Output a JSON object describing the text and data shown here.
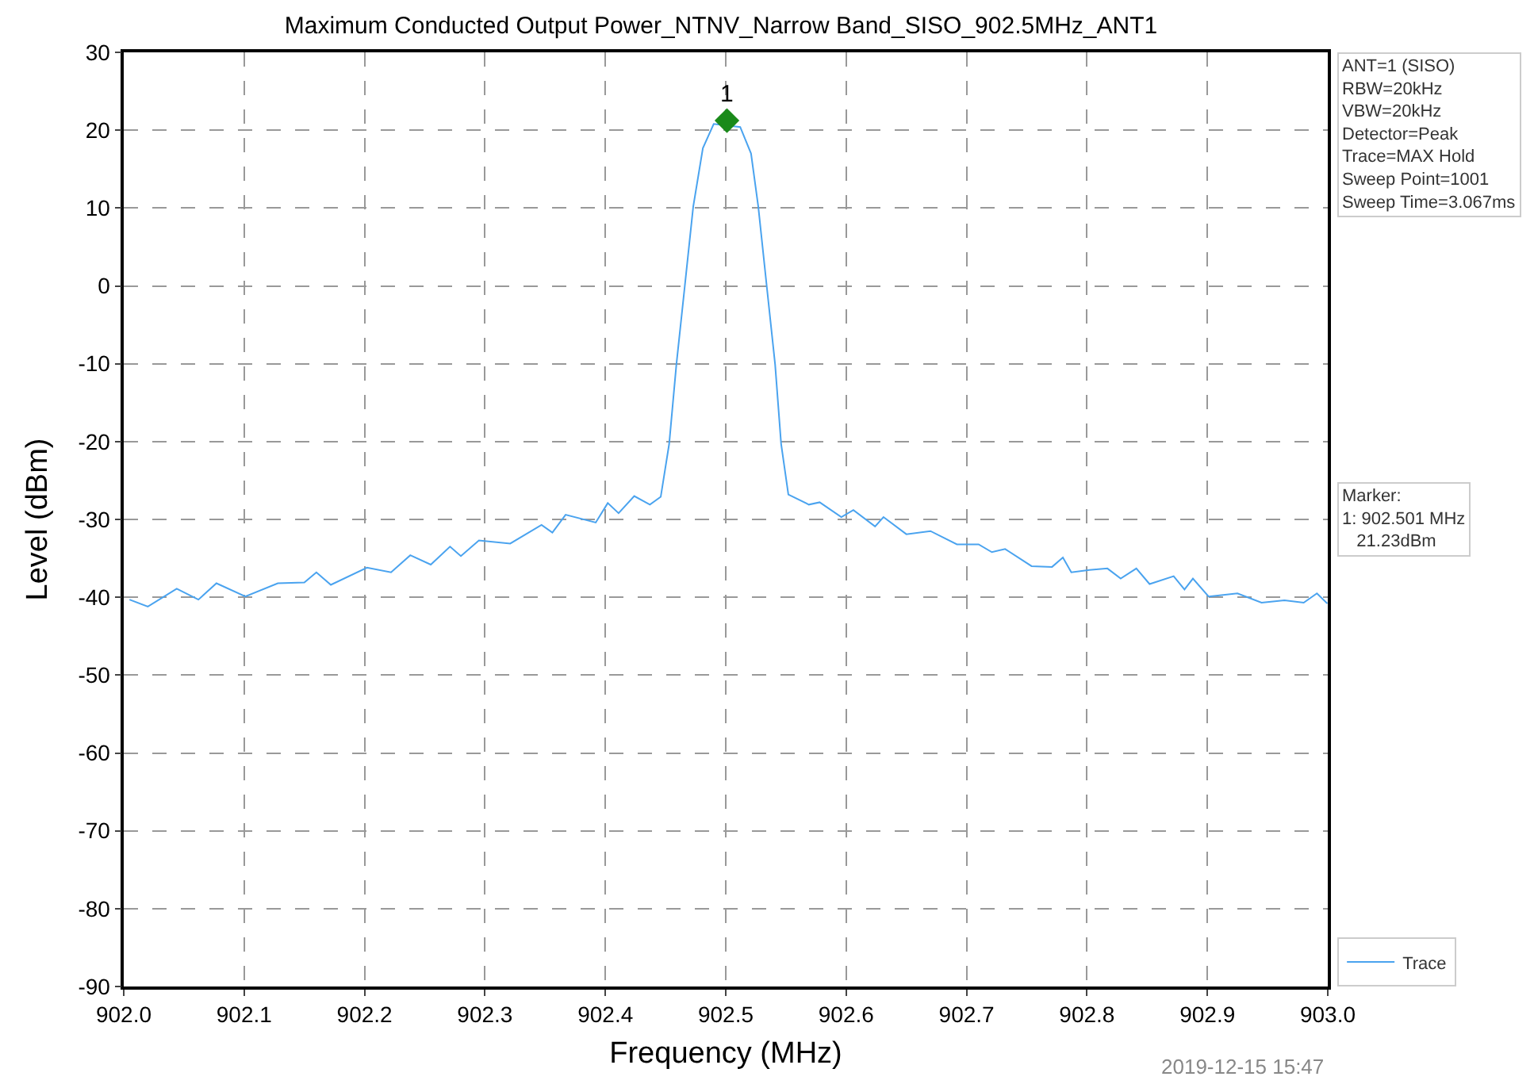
{
  "chart_data": {
    "type": "line",
    "title": "Maximum Conducted Output Power_NTNV_Narrow Band_SISO_902.5MHz_ANT1",
    "xlabel": "Frequency (MHz)",
    "ylabel": "Level (dBm)",
    "xlim": [
      902.0,
      903.0
    ],
    "xticks": [
      {
        "value": 902.0,
        "label": "902.0"
      },
      902.1,
      902.2,
      902.3,
      902.4,
      902.5,
      902.6,
      902.7,
      902.8,
      902.9,
      {
        "value": 903.0,
        "label": "903.0"
      }
    ],
    "ylim": [
      -90,
      30
    ],
    "yticks": [
      -90,
      -80,
      -70,
      -60,
      -50,
      -40,
      -30,
      -20,
      -10,
      0,
      10,
      20,
      30
    ],
    "grid": true,
    "legend": "bottom right",
    "line_style": "solid",
    "series": [
      {
        "name": "Trace",
        "marker": "none",
        "color": "#4aa3ef",
        "x": [
          902.0048,
          902.02,
          902.044,
          902.062,
          902.077,
          902.101,
          902.128,
          902.15,
          902.16,
          902.172,
          902.202,
          902.222,
          902.238,
          902.255,
          902.271,
          902.28,
          902.295,
          902.321,
          902.347,
          902.356,
          902.367,
          902.392,
          902.402,
          902.411,
          902.424,
          902.437,
          902.446,
          902.453,
          902.459,
          902.466,
          902.473,
          902.481,
          902.49,
          902.512,
          902.521,
          902.527,
          902.534,
          902.541,
          902.546,
          902.552,
          902.569,
          902.578,
          902.596,
          902.606,
          902.624,
          902.631,
          902.65,
          902.67,
          902.692,
          902.71,
          902.721,
          902.732,
          902.754,
          902.771,
          902.78,
          902.787,
          902.802,
          902.817,
          902.828,
          902.841,
          902.852,
          902.872,
          902.881,
          902.888,
          902.901,
          902.925,
          902.945,
          902.964,
          902.98,
          902.991,
          902.9996
        ],
        "values": [
          -40.3,
          -41.2,
          -38.9,
          -40.3,
          -38.2,
          -39.9,
          -38.2,
          -38.1,
          -36.8,
          -38.4,
          -36.2,
          -36.8,
          -34.6,
          -35.8,
          -33.5,
          -34.7,
          -32.7,
          -33.1,
          -30.7,
          -31.7,
          -29.4,
          -30.4,
          -27.9,
          -29.2,
          -27.0,
          -28.1,
          -27.1,
          -20.3,
          -10.1,
          0.0,
          10.2,
          17.7,
          20.8,
          20.4,
          17.0,
          10.2,
          0.0,
          -10.1,
          -20.3,
          -26.8,
          -28.1,
          -27.8,
          -29.7,
          -28.8,
          -30.9,
          -29.7,
          -31.9,
          -31.5,
          -33.2,
          -33.2,
          -34.2,
          -33.8,
          -36.0,
          -36.1,
          -34.9,
          -36.8,
          -36.5,
          -36.3,
          -37.6,
          -36.3,
          -38.3,
          -37.3,
          -39.0,
          -37.6,
          -39.9,
          -39.5,
          -40.7,
          -40.4,
          -40.7,
          -39.5,
          -40.8
        ]
      },
      {
        "type": "scatter",
        "marker": "diamond",
        "color": "#1a8a1a",
        "x": [
          902.501
        ],
        "values": [
          21.23
        ]
      }
    ],
    "annotations": [
      {
        "text": "1",
        "x": 902.501,
        "y": 21.23
      },
      "ANT=1 (SISO)\nRBW=20kHz\nVBW=20kHz\nDetector=Peak\nTrace=MAX Hold\nSweep Point=1001\nSweep Time=3.067ms",
      "Marker:\n1: 902.501 MHz\n   21.23dBm",
      "2019-12-15 15:47"
    ]
  }
}
